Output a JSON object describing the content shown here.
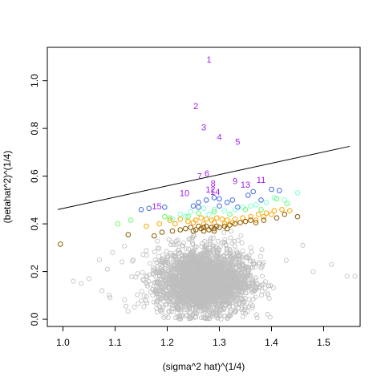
{
  "chart_data": {
    "type": "scatter",
    "xlabel": "(sigma^2 hat)^(1/4)",
    "ylabel": "(betahat^2)^(1/4)",
    "xlim": [
      0.97,
      1.57
    ],
    "ylim": [
      -0.03,
      1.14
    ],
    "x_ticks": [
      "1.0",
      "1.1",
      "1.2",
      "1.3",
      "1.4",
      "1.5"
    ],
    "y_ticks": [
      "0.0",
      "0.2",
      "0.4",
      "0.6",
      "0.8",
      "1.0"
    ],
    "grid": false,
    "background_cloud": {
      "color": "#bebebe",
      "approx_center": [
        1.27,
        0.16
      ],
      "approx_spread": [
        0.045,
        0.07
      ],
      "description_count": "thousands of points"
    },
    "reference_line": {
      "x": [
        0.99,
        1.55
      ],
      "y": [
        0.46,
        0.725
      ],
      "color": "#000000"
    },
    "labeled_points": [
      {
        "label": "1",
        "x": 1.28,
        "y": 1.09
      },
      {
        "label": "2",
        "x": 1.255,
        "y": 0.895
      },
      {
        "label": "3",
        "x": 1.27,
        "y": 0.805
      },
      {
        "label": "4",
        "x": 1.3,
        "y": 0.765
      },
      {
        "label": "5",
        "x": 1.335,
        "y": 0.745
      },
      {
        "label": "6",
        "x": 1.276,
        "y": 0.612
      },
      {
        "label": "7",
        "x": 1.262,
        "y": 0.6
      },
      {
        "label": "8",
        "x": 1.288,
        "y": 0.57
      },
      {
        "label": "9",
        "x": 1.33,
        "y": 0.58
      },
      {
        "label": "10",
        "x": 1.233,
        "y": 0.53
      },
      {
        "label": "11",
        "x": 1.38,
        "y": 0.585
      },
      {
        "label": "12",
        "x": 1.283,
        "y": 0.545
      },
      {
        "label": "13",
        "x": 1.35,
        "y": 0.565
      },
      {
        "label": "14",
        "x": 1.292,
        "y": 0.535
      },
      {
        "label": "15",
        "x": 1.18,
        "y": 0.475
      }
    ],
    "colors": {
      "labels": "#a020f0",
      "blue": "#4169e1",
      "aquamarine": "#7fffd4",
      "green": "#66ff66",
      "orange": "#ffa500",
      "brown": "#8b5a00",
      "gray": "#bebebe"
    },
    "series": [
      {
        "color": "blue",
        "points": [
          [
            1.15,
            0.46
          ],
          [
            1.165,
            0.465
          ],
          [
            1.195,
            0.47
          ],
          [
            1.25,
            0.475
          ],
          [
            1.26,
            0.49
          ],
          [
            1.275,
            0.5
          ],
          [
            1.29,
            0.51
          ],
          [
            1.3,
            0.505
          ],
          [
            1.315,
            0.49
          ],
          [
            1.325,
            0.5
          ],
          [
            1.355,
            0.52
          ],
          [
            1.365,
            0.535
          ],
          [
            1.4,
            0.545
          ],
          [
            1.415,
            0.54
          ],
          [
            1.38,
            0.5
          ],
          [
            1.26,
            0.47
          ],
          [
            1.3,
            0.475
          ],
          [
            1.335,
            0.47
          ]
        ]
      },
      {
        "color": "aquamarine",
        "points": [
          [
            1.21,
            0.42
          ],
          [
            1.225,
            0.44
          ],
          [
            1.245,
            0.45
          ],
          [
            1.27,
            0.465
          ],
          [
            1.29,
            0.46
          ],
          [
            1.31,
            0.455
          ],
          [
            1.33,
            0.46
          ],
          [
            1.345,
            0.47
          ],
          [
            1.37,
            0.48
          ],
          [
            1.39,
            0.49
          ],
          [
            1.425,
            0.5
          ],
          [
            1.45,
            0.53
          ],
          [
            1.405,
            0.51
          ],
          [
            1.36,
            0.475
          ],
          [
            1.28,
            0.44
          ],
          [
            1.235,
            0.43
          ]
        ]
      },
      {
        "color": "green",
        "points": [
          [
            1.105,
            0.4
          ],
          [
            1.13,
            0.415
          ],
          [
            1.195,
            0.43
          ],
          [
            1.205,
            0.425
          ],
          [
            1.24,
            0.43
          ],
          [
            1.26,
            0.445
          ],
          [
            1.29,
            0.45
          ],
          [
            1.32,
            0.44
          ],
          [
            1.41,
            0.505
          ],
          [
            1.43,
            0.485
          ],
          [
            1.35,
            0.46
          ],
          [
            1.38,
            0.46
          ]
        ]
      },
      {
        "color": "orange",
        "points": [
          [
            1.16,
            0.39
          ],
          [
            1.185,
            0.4
          ],
          [
            1.205,
            0.415
          ],
          [
            1.225,
            0.42
          ],
          [
            1.24,
            0.41
          ],
          [
            1.255,
            0.415
          ],
          [
            1.265,
            0.425
          ],
          [
            1.275,
            0.42
          ],
          [
            1.285,
            0.415
          ],
          [
            1.295,
            0.425
          ],
          [
            1.305,
            0.42
          ],
          [
            1.315,
            0.415
          ],
          [
            1.33,
            0.42
          ],
          [
            1.345,
            0.425
          ],
          [
            1.36,
            0.43
          ],
          [
            1.375,
            0.44
          ],
          [
            1.39,
            0.445
          ],
          [
            1.405,
            0.455
          ],
          [
            1.42,
            0.46
          ],
          [
            1.435,
            0.455
          ],
          [
            1.25,
            0.405
          ],
          [
            1.27,
            0.4
          ],
          [
            1.29,
            0.405
          ],
          [
            1.31,
            0.4
          ],
          [
            1.325,
            0.405
          ],
          [
            1.215,
            0.4
          ],
          [
            1.35,
            0.41
          ],
          [
            1.37,
            0.415
          ],
          [
            1.385,
            0.43
          ],
          [
            1.4,
            0.44
          ]
        ]
      },
      {
        "color": "brown",
        "points": [
          [
            0.995,
            0.315
          ],
          [
            1.125,
            0.355
          ],
          [
            1.175,
            0.35
          ],
          [
            1.19,
            0.365
          ],
          [
            1.21,
            0.37
          ],
          [
            1.225,
            0.375
          ],
          [
            1.235,
            0.38
          ],
          [
            1.245,
            0.385
          ],
          [
            1.255,
            0.375
          ],
          [
            1.26,
            0.39
          ],
          [
            1.265,
            0.38
          ],
          [
            1.27,
            0.385
          ],
          [
            1.275,
            0.39
          ],
          [
            1.28,
            0.375
          ],
          [
            1.285,
            0.385
          ],
          [
            1.29,
            0.38
          ],
          [
            1.295,
            0.39
          ],
          [
            1.3,
            0.385
          ],
          [
            1.31,
            0.39
          ],
          [
            1.32,
            0.395
          ],
          [
            1.33,
            0.4
          ],
          [
            1.34,
            0.405
          ],
          [
            1.35,
            0.41
          ],
          [
            1.36,
            0.415
          ],
          [
            1.37,
            0.405
          ],
          [
            1.385,
            0.415
          ],
          [
            1.41,
            0.425
          ],
          [
            1.425,
            0.44
          ],
          [
            1.45,
            0.43
          ],
          [
            1.25,
            0.37
          ],
          [
            1.27,
            0.37
          ],
          [
            1.29,
            0.37
          ],
          [
            1.315,
            0.38
          ]
        ]
      }
    ]
  }
}
